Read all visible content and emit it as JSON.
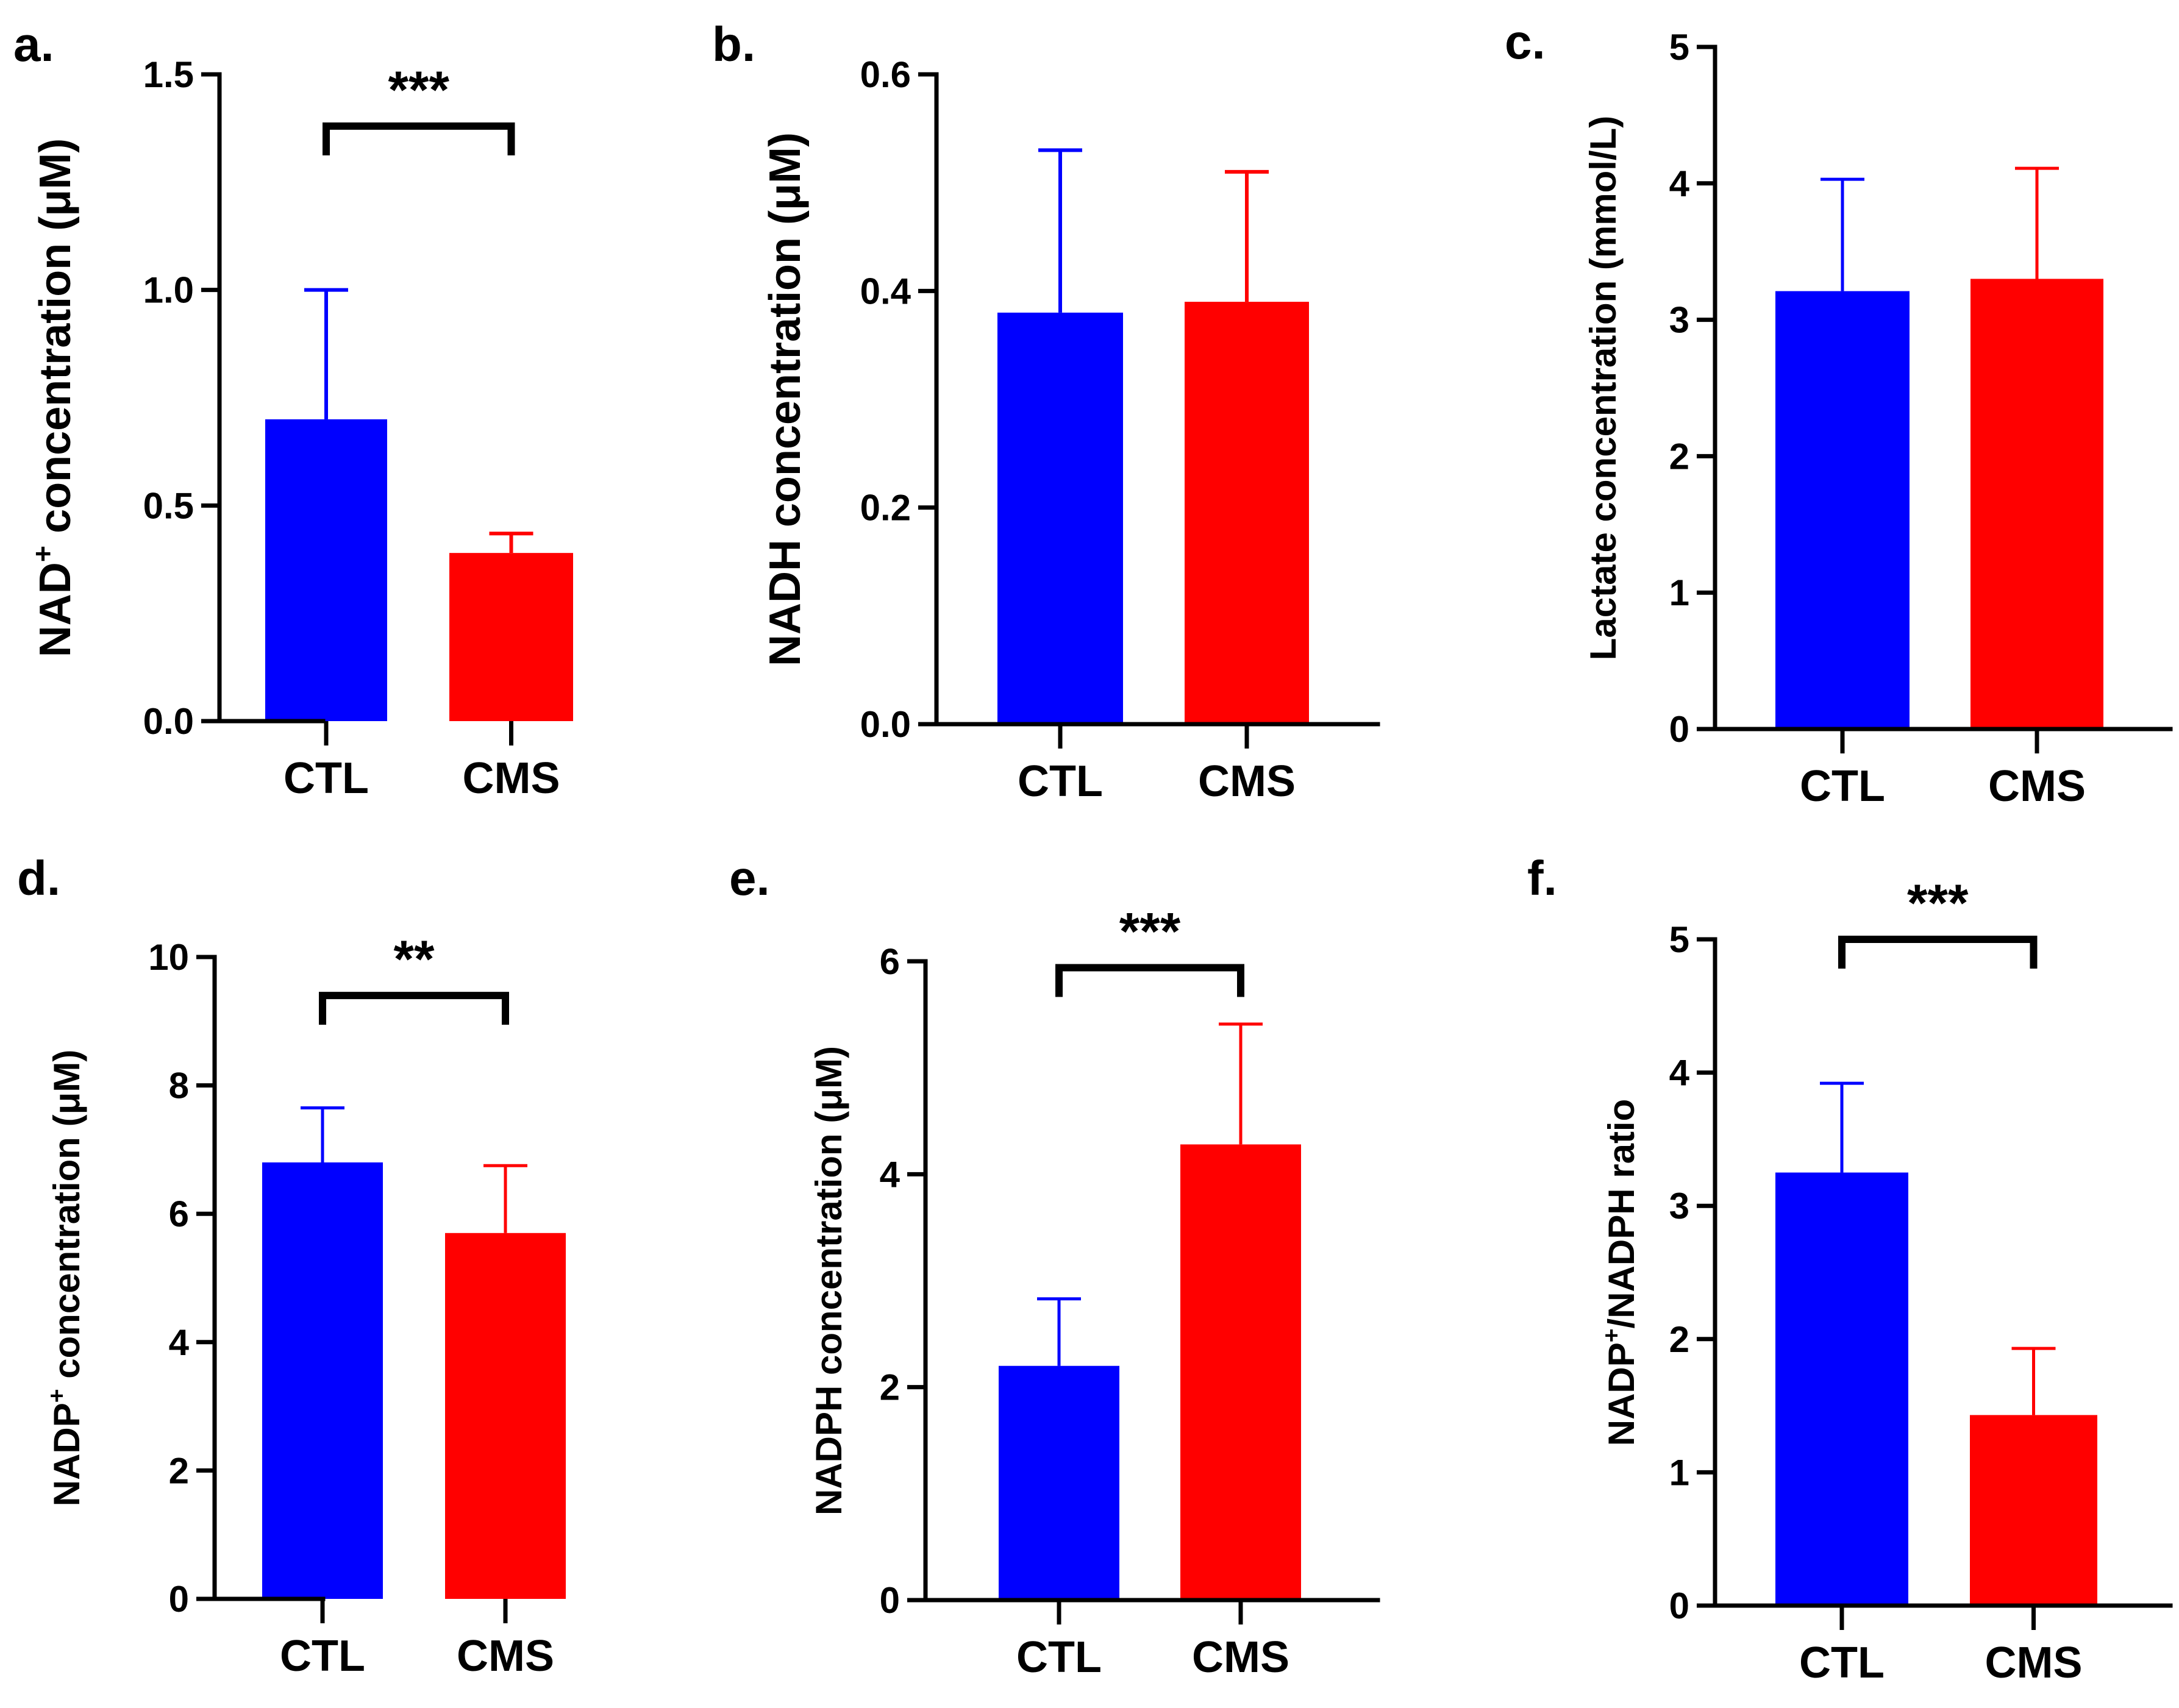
{
  "colors": {
    "ctl": "#0000ff",
    "cms": "#ff0000",
    "axis": "#000000"
  },
  "chart_data": [
    {
      "panel": "a.",
      "type": "bar",
      "categories": [
        "CTL",
        "CMS"
      ],
      "values": [
        0.7,
        0.39
      ],
      "errors": [
        0.3,
        0.045
      ],
      "ylabel_main": "NAD",
      "ylabel_sup": "+",
      "ylabel_tail": " concentration (μM)",
      "ylim": [
        0,
        1.5
      ],
      "yticks": [
        "0.0",
        "0.5",
        "1.0",
        "1.5"
      ],
      "significance": "***",
      "bracket_level": 1.38
    },
    {
      "panel": "b.",
      "type": "bar",
      "categories": [
        "CTL",
        "CMS"
      ],
      "values": [
        0.38,
        0.39
      ],
      "errors": [
        0.15,
        0.12
      ],
      "ylabel_main": "NADH concentration (μM)",
      "ylabel_sup": "",
      "ylabel_tail": "",
      "ylim": [
        0,
        0.6
      ],
      "yticks": [
        "0.0",
        "0.2",
        "0.4",
        "0.6"
      ],
      "significance": "",
      "bracket_level": null
    },
    {
      "panel": "c.",
      "type": "bar",
      "categories": [
        "CTL",
        "CMS"
      ],
      "values": [
        3.21,
        3.3
      ],
      "errors": [
        0.82,
        0.81
      ],
      "ylabel_main": "Lactate concentration (mmol/L)",
      "ylabel_sup": "",
      "ylabel_tail": "",
      "ylim": [
        0,
        5
      ],
      "yticks": [
        "0",
        "1",
        "2",
        "3",
        "4",
        "5"
      ],
      "significance": "",
      "bracket_level": null
    },
    {
      "panel": "d.",
      "type": "bar",
      "categories": [
        "CTL",
        "CMS"
      ],
      "values": [
        6.8,
        5.7
      ],
      "errors": [
        0.85,
        1.05
      ],
      "ylabel_main": "NADP",
      "ylabel_sup": "+",
      "ylabel_tail": " concentration (μM)",
      "ylim": [
        0,
        10
      ],
      "yticks": [
        "0",
        "2",
        "4",
        "6",
        "8",
        "10"
      ],
      "significance": "**",
      "bracket_level": 9.4
    },
    {
      "panel": "e.",
      "type": "bar",
      "categories": [
        "CTL",
        "CMS"
      ],
      "values": [
        2.2,
        4.28
      ],
      "errors": [
        0.63,
        1.13
      ],
      "ylabel_main": "NADPH concentration (μM)",
      "ylabel_sup": "",
      "ylabel_tail": "",
      "ylim": [
        0,
        6
      ],
      "yticks": [
        "0",
        "2",
        "4",
        "6"
      ],
      "significance": "***",
      "bracket_level": 5.94
    },
    {
      "panel": "f.",
      "type": "bar",
      "categories": [
        "CTL",
        "CMS"
      ],
      "values": [
        3.25,
        1.43
      ],
      "errors": [
        0.67,
        0.5
      ],
      "ylabel_main": "NADP",
      "ylabel_sup": "+",
      "ylabel_tail": "/NADPH ratio",
      "ylim": [
        0,
        5
      ],
      "yticks": [
        "0",
        "1",
        "2",
        "3",
        "4",
        "5"
      ],
      "significance": "***",
      "bracket_level": 5.0
    }
  ]
}
